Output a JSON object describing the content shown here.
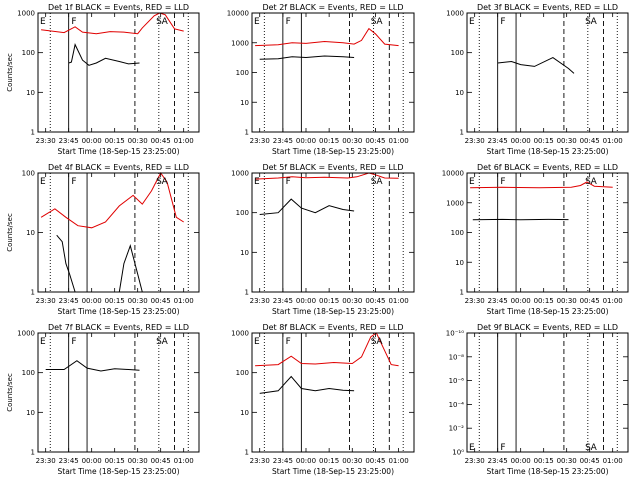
{
  "chart_data": [
    {
      "type": "line",
      "title": "Det 1f BLACK = Events, RED = LLD",
      "ylabel": "Counts/sec",
      "xlabel": "Start Time (18-Sep-15 23:25:00)",
      "x_ticks": [
        "23:30",
        "23:45",
        "00:00",
        "00:15",
        "00:30",
        "00:45",
        "01:00"
      ],
      "y_scale": "log",
      "ylim": [
        1,
        1000
      ],
      "y_ticks": [
        "1",
        "10",
        "100",
        "1000"
      ],
      "markers": [
        "E",
        "F",
        "S",
        "A"
      ],
      "series": [
        {
          "color": "#000000",
          "values": [
            [
              23.75,
              55
            ],
            [
              23.78,
              58
            ],
            [
              23.82,
              160
            ],
            [
              23.9,
              65
            ],
            [
              23.97,
              48
            ],
            [
              24.05,
              55
            ],
            [
              24.15,
              72
            ],
            [
              24.3,
              60
            ],
            [
              24.4,
              52
            ],
            [
              24.52,
              55
            ]
          ]
        },
        {
          "color": "#e00000",
          "values": [
            [
              23.45,
              380
            ],
            [
              23.7,
              320
            ],
            [
              23.82,
              450
            ],
            [
              23.9,
              330
            ],
            [
              24.05,
              300
            ],
            [
              24.2,
              340
            ],
            [
              24.35,
              330
            ],
            [
              24.5,
              300
            ],
            [
              24.55,
              420
            ],
            [
              24.68,
              850
            ],
            [
              24.74,
              1000
            ],
            [
              24.8,
              900
            ],
            [
              24.9,
              400
            ],
            [
              25.0,
              350
            ]
          ]
        }
      ]
    },
    {
      "type": "line",
      "title": "Det 2f BLACK = Events, RED = LLD",
      "ylabel": "",
      "xlabel": "Start Time (18-Sep-15 23:25:00)",
      "x_ticks": [
        "23:30",
        "23:45",
        "00:00",
        "00:15",
        "00:30",
        "00:45",
        "01:00"
      ],
      "y_scale": "log",
      "ylim": [
        1,
        10000
      ],
      "y_ticks": [
        "1",
        "10",
        "100",
        "1000",
        "10000"
      ],
      "markers": [
        "E",
        "F",
        "S",
        "A"
      ],
      "series": [
        {
          "color": "#000000",
          "values": [
            [
              23.5,
              280
            ],
            [
              23.7,
              290
            ],
            [
              23.85,
              340
            ],
            [
              24.0,
              320
            ],
            [
              24.2,
              360
            ],
            [
              24.4,
              340
            ],
            [
              24.52,
              320
            ]
          ]
        },
        {
          "color": "#e00000",
          "values": [
            [
              23.45,
              800
            ],
            [
              23.7,
              850
            ],
            [
              23.85,
              1000
            ],
            [
              24.0,
              950
            ],
            [
              24.2,
              1100
            ],
            [
              24.4,
              1000
            ],
            [
              24.52,
              900
            ],
            [
              24.6,
              1200
            ],
            [
              24.68,
              3000
            ],
            [
              24.75,
              2000
            ],
            [
              24.85,
              900
            ],
            [
              25.0,
              800
            ]
          ]
        }
      ]
    },
    {
      "type": "line",
      "title": "Det 3f BLACK = Events, RED = LLD",
      "ylabel": "",
      "xlabel": "Start Time (18-Sep-15 23:25:00)",
      "x_ticks": [
        "23:30",
        "23:45",
        "00:00",
        "00:15",
        "00:30",
        "00:45",
        "01:00"
      ],
      "y_scale": "log",
      "ylim": [
        1,
        1000
      ],
      "y_ticks": [
        "1",
        "10",
        "100",
        "1000"
      ],
      "markers": [
        "E",
        "F",
        "S",
        "A"
      ],
      "series": [
        {
          "color": "#000000",
          "values": [
            [
              23.75,
              55
            ],
            [
              23.9,
              60
            ],
            [
              24.0,
              50
            ],
            [
              24.15,
              45
            ],
            [
              24.35,
              75
            ],
            [
              24.52,
              40
            ],
            [
              24.58,
              30
            ]
          ]
        }
      ]
    },
    {
      "type": "line",
      "title": "Det 4f BLACK = Events, RED = LLD",
      "ylabel": "Counts/sec",
      "xlabel": "Start Time (18-Sep-15 23:25:00)",
      "x_ticks": [
        "23:30",
        "23:45",
        "00:00",
        "00:15",
        "00:30",
        "00:45",
        "01:00"
      ],
      "y_scale": "log",
      "ylim": [
        1,
        100
      ],
      "y_ticks": [
        "1",
        "10",
        "100"
      ],
      "markers": [
        "E",
        "F",
        "S",
        "A"
      ],
      "series": [
        {
          "color": "#000000",
          "values": [
            [
              23.62,
              9
            ],
            [
              23.68,
              7
            ],
            [
              23.72,
              3
            ],
            [
              23.76,
              2
            ],
            [
              23.82,
              1
            ],
            [
              24.3,
              1
            ],
            [
              24.35,
              3
            ],
            [
              24.42,
              6
            ],
            [
              24.5,
              2
            ],
            [
              24.55,
              1
            ]
          ]
        },
        {
          "color": "#e00000",
          "values": [
            [
              23.45,
              18
            ],
            [
              23.6,
              25
            ],
            [
              23.72,
              18
            ],
            [
              23.85,
              13
            ],
            [
              24.0,
              12
            ],
            [
              24.15,
              15
            ],
            [
              24.3,
              28
            ],
            [
              24.45,
              42
            ],
            [
              24.55,
              30
            ],
            [
              24.65,
              50
            ],
            [
              24.75,
              100
            ],
            [
              24.82,
              70
            ],
            [
              24.92,
              18
            ],
            [
              25.0,
              15
            ]
          ]
        }
      ]
    },
    {
      "type": "line",
      "title": "Det 5f BLACK = Events, RED = LLD",
      "ylabel": "",
      "xlabel": "Start Time (18-Sep-15 23:25:00)",
      "x_ticks": [
        "23:30",
        "23:45",
        "00:00",
        "00:15",
        "00:30",
        "00:45",
        "01:00"
      ],
      "y_scale": "log",
      "ylim": [
        1,
        1000
      ],
      "y_ticks": [
        "1",
        "10",
        "100",
        "1000"
      ],
      "markers": [
        "E",
        "F",
        "S",
        "A"
      ],
      "series": [
        {
          "color": "#000000",
          "values": [
            [
              23.5,
              90
            ],
            [
              23.7,
              100
            ],
            [
              23.84,
              220
            ],
            [
              23.95,
              130
            ],
            [
              24.1,
              100
            ],
            [
              24.25,
              150
            ],
            [
              24.4,
              120
            ],
            [
              24.52,
              110
            ]
          ]
        },
        {
          "color": "#e00000",
          "values": [
            [
              23.45,
              700
            ],
            [
              23.7,
              750
            ],
            [
              23.85,
              800
            ],
            [
              24.0,
              760
            ],
            [
              24.2,
              780
            ],
            [
              24.45,
              750
            ],
            [
              24.55,
              800
            ],
            [
              24.68,
              1000
            ],
            [
              24.75,
              900
            ],
            [
              24.85,
              750
            ],
            [
              25.0,
              740
            ]
          ]
        }
      ]
    },
    {
      "type": "line",
      "title": "Det 6f BLACK = Events, RED = LLD",
      "ylabel": "",
      "xlabel": "Start Time (18-Sep-15 23:25:00)",
      "x_ticks": [
        "23:30",
        "23:45",
        "00:00",
        "00:15",
        "00:30",
        "00:45",
        "01:00"
      ],
      "y_scale": "log",
      "ylim": [
        1,
        10000
      ],
      "y_ticks": [
        "1",
        "10",
        "100",
        "1000",
        "10000"
      ],
      "markers": [
        "E",
        "F",
        "S",
        "A"
      ],
      "series": [
        {
          "color": "#000000",
          "values": [
            [
              23.48,
              270
            ],
            [
              23.8,
              275
            ],
            [
              24.0,
              270
            ],
            [
              24.3,
              275
            ],
            [
              24.52,
              272
            ]
          ]
        },
        {
          "color": "#e00000",
          "values": [
            [
              23.45,
              3200
            ],
            [
              23.8,
              3300
            ],
            [
              24.2,
              3200
            ],
            [
              24.55,
              3300
            ],
            [
              24.65,
              3800
            ],
            [
              24.72,
              5000
            ],
            [
              24.8,
              3600
            ],
            [
              25.0,
              3300
            ]
          ]
        }
      ]
    },
    {
      "type": "line",
      "title": "Det 7f BLACK = Events, RED = LLD",
      "ylabel": "Counts/sec",
      "xlabel": "Start Time (18-Sep-15 23:25:00)",
      "x_ticks": [
        "23:30",
        "23:45",
        "00:00",
        "00:15",
        "00:30",
        "00:45",
        "01:00"
      ],
      "y_scale": "log",
      "ylim": [
        1,
        1000
      ],
      "y_ticks": [
        "1",
        "10",
        "100",
        "1000"
      ],
      "markers": [
        "E",
        "F",
        "S",
        "A"
      ],
      "series": [
        {
          "color": "#000000",
          "values": [
            [
              23.5,
              120
            ],
            [
              23.7,
              120
            ],
            [
              23.84,
              200
            ],
            [
              23.95,
              130
            ],
            [
              24.1,
              110
            ],
            [
              24.25,
              125
            ],
            [
              24.4,
              120
            ],
            [
              24.52,
              115
            ]
          ]
        }
      ]
    },
    {
      "type": "line",
      "title": "Det 8f BLACK = Events, RED = LLD",
      "ylabel": "",
      "xlabel": "Start Time (18-Sep-15 23:25:00)",
      "x_ticks": [
        "23:30",
        "23:45",
        "00:00",
        "00:15",
        "00:30",
        "00:45",
        "01:00"
      ],
      "y_scale": "log",
      "ylim": [
        1,
        1000
      ],
      "y_ticks": [
        "1",
        "10",
        "100",
        "1000"
      ],
      "markers": [
        "E",
        "F",
        "S",
        "A"
      ],
      "series": [
        {
          "color": "#000000",
          "values": [
            [
              23.5,
              30
            ],
            [
              23.7,
              35
            ],
            [
              23.84,
              80
            ],
            [
              23.95,
              40
            ],
            [
              24.1,
              35
            ],
            [
              24.25,
              40
            ],
            [
              24.4,
              36
            ],
            [
              24.52,
              35
            ]
          ]
        },
        {
          "color": "#e00000",
          "values": [
            [
              23.45,
              150
            ],
            [
              23.7,
              160
            ],
            [
              23.84,
              260
            ],
            [
              23.95,
              170
            ],
            [
              24.1,
              165
            ],
            [
              24.3,
              180
            ],
            [
              24.5,
              170
            ],
            [
              24.6,
              250
            ],
            [
              24.7,
              800
            ],
            [
              24.76,
              1000
            ],
            [
              24.84,
              400
            ],
            [
              24.92,
              160
            ],
            [
              25.0,
              150
            ]
          ]
        }
      ]
    },
    {
      "type": "line",
      "title": "Det 9f BLACK = Events, RED = LLD",
      "ylabel": "",
      "xlabel": "Start Time (18-Sep-15 23:25:00)",
      "x_ticks": [
        "23:30",
        "23:45",
        "00:00",
        "00:15",
        "00:30",
        "00:45",
        "01:00"
      ],
      "y_scale": "log",
      "ylim": [
        1,
        1e-10
      ],
      "y_ticks": [
        "10⁰",
        "10⁻²",
        "10⁻⁴",
        "10⁻⁶",
        "10⁻⁸",
        "10⁻¹⁰"
      ],
      "markers": [
        "E",
        "F",
        "S",
        "A"
      ],
      "series": []
    }
  ]
}
